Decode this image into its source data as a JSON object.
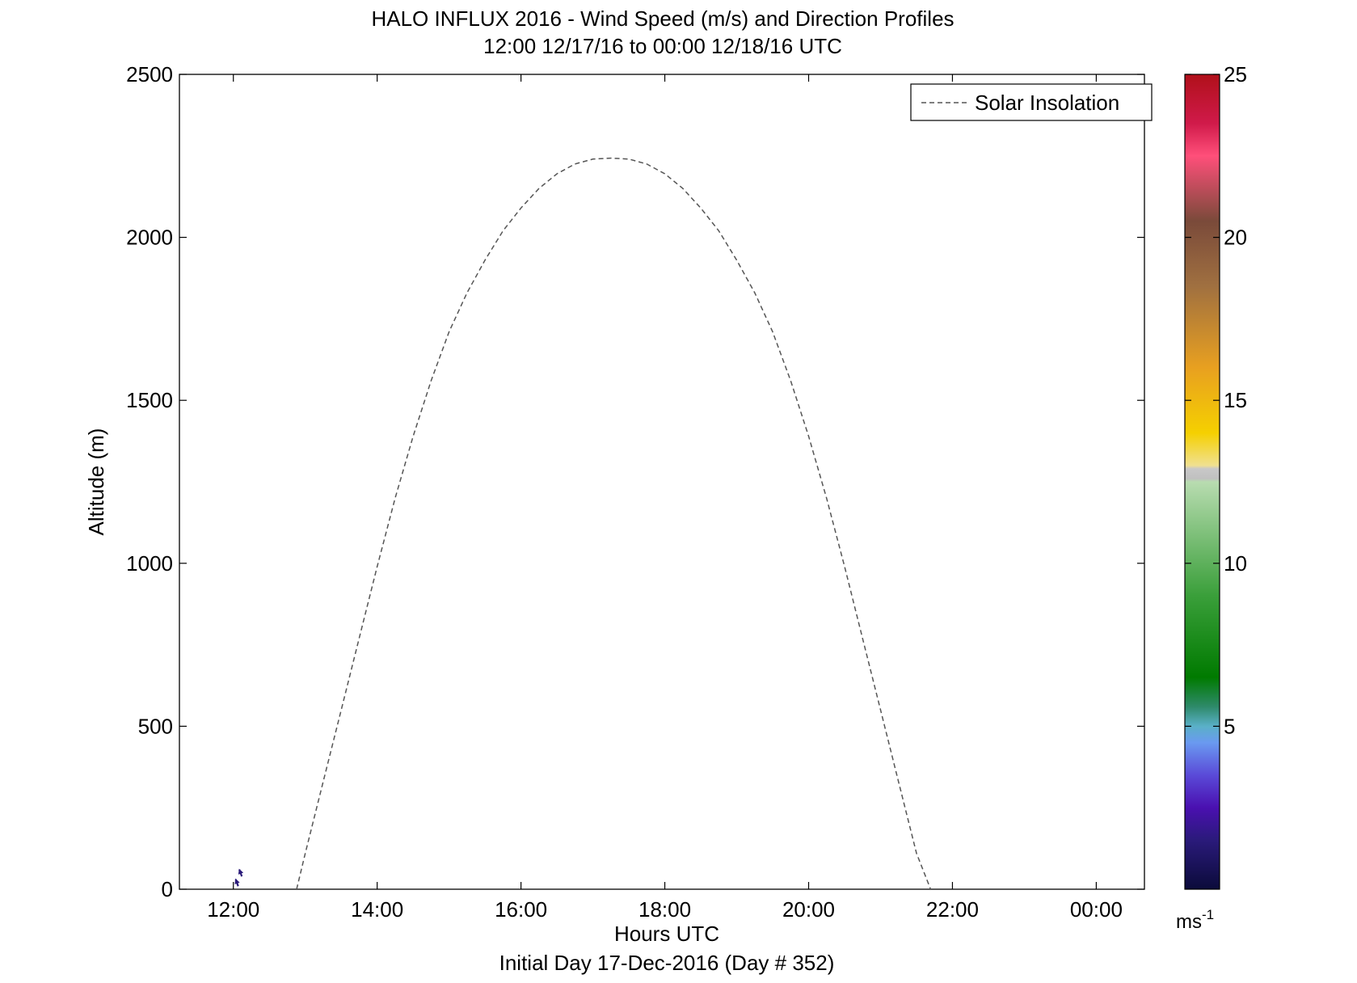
{
  "chart_data": {
    "type": "quiver",
    "title": "HALO INFLUX 2016 - Wind Speed (m/s) and Direction Profiles",
    "subtitle": "12:00 12/17/16 to 00:00 12/18/16  UTC",
    "xlabel": "Hours UTC",
    "ylabel": "Altitude (m)",
    "footer": "Initial Day 17-Dec-2016 (Day # 352)",
    "xlim": [
      11.25,
      24.67
    ],
    "ylim": [
      0,
      2500
    ],
    "x_ticks": [
      12,
      14,
      16,
      18,
      20,
      22,
      24
    ],
    "x_tick_labels": [
      "12:00",
      "14:00",
      "16:00",
      "18:00",
      "20:00",
      "22:00",
      "00:00"
    ],
    "y_ticks": [
      0,
      500,
      1000,
      1500,
      2000,
      2500
    ],
    "y_tick_labels": [
      "0",
      "500",
      "1000",
      "1500",
      "2000",
      "2500"
    ],
    "legend": {
      "label": "Solar Insolation",
      "position": "top-right"
    },
    "colorbar": {
      "range": [
        0,
        25
      ],
      "ticks": [
        5,
        10,
        15,
        20,
        25
      ],
      "tick_labels": [
        "5",
        "10",
        "15",
        "20",
        "25"
      ],
      "units": "ms",
      "units_exp": "-1",
      "stops": [
        {
          "v": 0,
          "c": "#0b0b3a"
        },
        {
          "v": 1.5,
          "c": "#2a1a7a"
        },
        {
          "v": 2.5,
          "c": "#4a10b0"
        },
        {
          "v": 3.5,
          "c": "#5a4ad8"
        },
        {
          "v": 4.5,
          "c": "#6a9af0"
        },
        {
          "v": 5.0,
          "c": "#5ab0c8"
        },
        {
          "v": 5.6,
          "c": "#2e8a6a"
        },
        {
          "v": 6.5,
          "c": "#007a00"
        },
        {
          "v": 9.0,
          "c": "#3a9f3a"
        },
        {
          "v": 12.5,
          "c": "#b8dcb0"
        },
        {
          "v": 12.6,
          "c": "#c0c0c0"
        },
        {
          "v": 12.9,
          "c": "#c8c8c8"
        },
        {
          "v": 13.0,
          "c": "#f0e090"
        },
        {
          "v": 14.0,
          "c": "#f5d000"
        },
        {
          "v": 16.0,
          "c": "#e8a020"
        },
        {
          "v": 18.5,
          "c": "#a07040"
        },
        {
          "v": 20.5,
          "c": "#7a4a3a"
        },
        {
          "v": 22.5,
          "c": "#ff4f7a"
        },
        {
          "v": 23.5,
          "c": "#d01a4a"
        },
        {
          "v": 25,
          "c": "#b0101a"
        }
      ]
    },
    "solar_insolation": {
      "style": "dashed",
      "color": "#555555",
      "x": [
        12.88,
        13.0,
        13.25,
        13.5,
        13.75,
        14.0,
        14.25,
        14.5,
        14.75,
        15.0,
        15.25,
        15.5,
        15.75,
        16.0,
        16.25,
        16.5,
        16.75,
        17.0,
        17.25,
        17.5,
        17.75,
        18.0,
        18.25,
        18.5,
        18.75,
        19.0,
        19.25,
        19.5,
        19.75,
        20.0,
        20.25,
        20.5,
        20.75,
        21.0,
        21.25,
        21.5,
        21.75,
        22.0,
        22.15
      ],
      "y": [
        0,
        110,
        330,
        550,
        770,
        990,
        1200,
        1390,
        1560,
        1710,
        1830,
        1930,
        2020,
        2090,
        2150,
        2195,
        2225,
        2240,
        2243,
        2240,
        2225,
        2195,
        2150,
        2090,
        2020,
        1930,
        1830,
        1710,
        1560,
        1390,
        1200,
        990,
        770,
        550,
        330,
        110,
        -30,
        -100,
        -100
      ]
    },
    "vectors": [
      {
        "t": 12.05,
        "alt": 20,
        "spd": 1.5,
        "dir": 340
      },
      {
        "t": 12.1,
        "alt": 50,
        "spd": 1.5,
        "dir": 340
      }
    ]
  }
}
